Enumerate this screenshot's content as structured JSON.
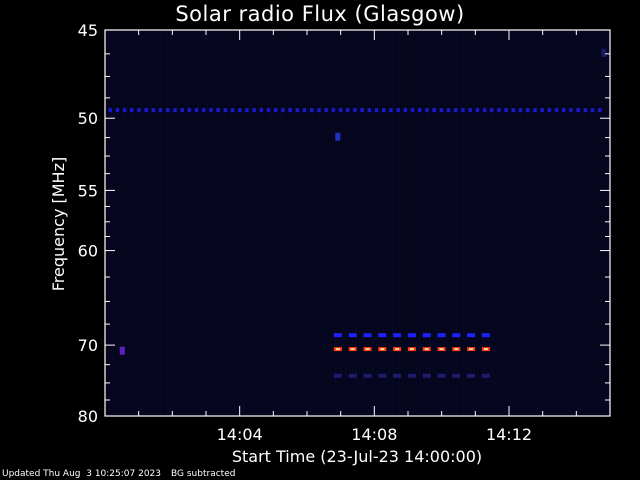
{
  "chart_data": {
    "type": "heatmap",
    "title": "Solar radio Flux (Glasgow)",
    "xlabel": "Start Time (23-Jul-23 14:00:00)",
    "ylabel": "Frequency [MHz]",
    "x_unit": "minutes after 14:00:00",
    "xlim": [
      0,
      15
    ],
    "ylim": [
      80,
      45
    ],
    "y_scale": "reciprocal",
    "x_ticks": [
      {
        "value": 4,
        "label": "14:04"
      },
      {
        "value": 8,
        "label": "14:08"
      },
      {
        "value": 12,
        "label": "14:12"
      }
    ],
    "y_ticks": [
      {
        "value": 45,
        "label": "45"
      },
      {
        "value": 50,
        "label": "50"
      },
      {
        "value": 55,
        "label": "55"
      },
      {
        "value": 60,
        "label": "60"
      },
      {
        "value": 70,
        "label": "70"
      },
      {
        "value": 80,
        "label": "80"
      }
    ],
    "features": [
      {
        "kind": "dashed-band",
        "freq_mhz": 49.5,
        "x_start": 0.1,
        "x_end": 14.9,
        "color": "#1a1ad0"
      },
      {
        "kind": "dashed-band",
        "freq_mhz": 68.8,
        "x_start": 6.8,
        "x_end": 11.6,
        "color": "#2020ff"
      },
      {
        "kind": "dashed-band",
        "freq_mhz": 70.5,
        "x_start": 6.8,
        "x_end": 11.6,
        "color": "#ff3a10"
      },
      {
        "kind": "dashed-band",
        "freq_mhz": 74.0,
        "x_start": 6.8,
        "x_end": 11.6,
        "color": "#1c1c70"
      },
      {
        "kind": "spot",
        "freq_mhz": 70.7,
        "x": 0.5,
        "color": "#6020c0"
      },
      {
        "kind": "spot",
        "freq_mhz": 51.2,
        "x": 6.9,
        "color": "#2030c0"
      },
      {
        "kind": "spot",
        "freq_mhz": 46.2,
        "x": 14.8,
        "color": "#1a1a60"
      }
    ],
    "colors": {
      "background": "#000000",
      "plot_bg": "#05051c",
      "axes": "#ffffff"
    }
  },
  "footer": {
    "updated": "Updated Thu Aug  3 10:25:07 2023",
    "note": "BG subtracted"
  }
}
